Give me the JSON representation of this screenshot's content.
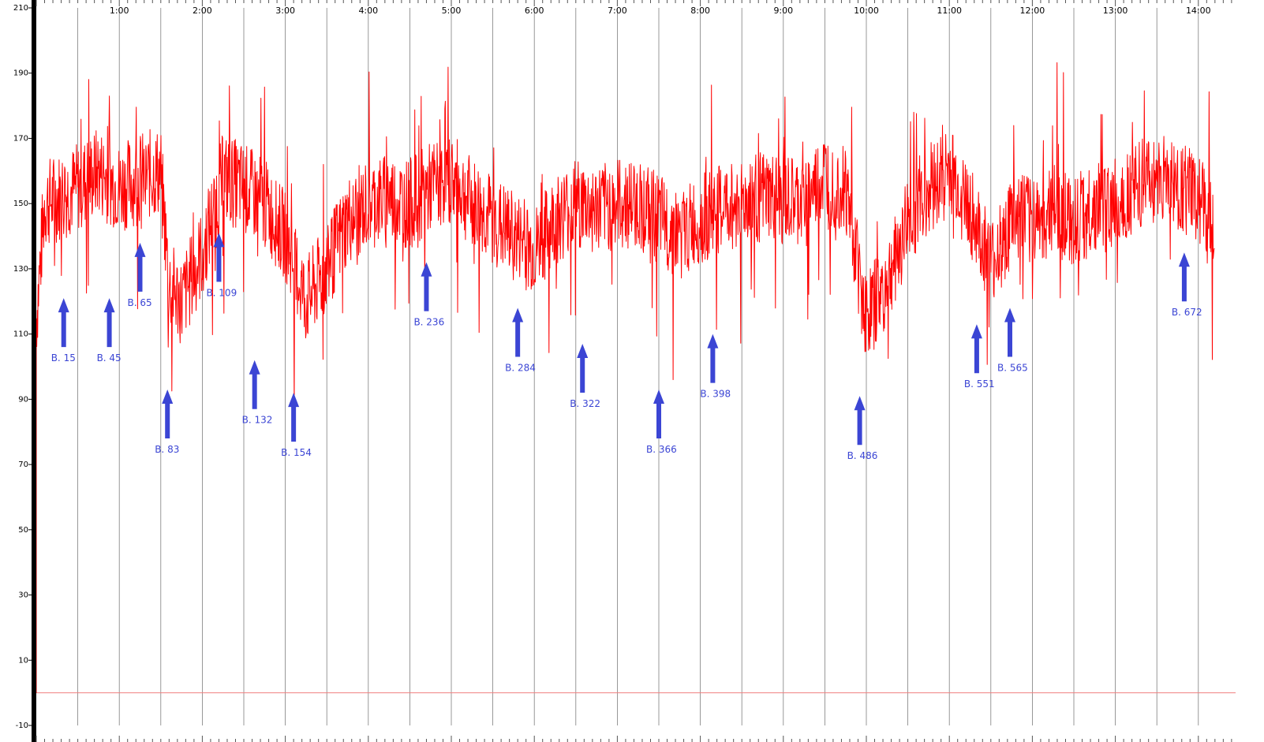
{
  "chart_data": {
    "type": "line",
    "title": "",
    "xlabel": "",
    "ylabel": "",
    "ylim": [
      -10,
      210
    ],
    "xlim_minutes": [
      0,
      14.5
    ],
    "y_ticks": [
      "210",
      "190",
      "170",
      "150",
      "130",
      "110",
      "90",
      "70",
      "50",
      "30",
      "10",
      "-10"
    ],
    "x_ticks": [
      "1:00",
      "2:00",
      "3:00",
      "4:00",
      "5:00",
      "6:00",
      "7:00",
      "8:00",
      "9:00",
      "10:00",
      "11:00",
      "12:00",
      "13:00",
      "14:00"
    ],
    "grid": "vertical lines every 30 seconds",
    "baseline": 0,
    "series": [
      {
        "color": "#ff0000",
        "x_minutes": [
          0.0,
          0.1,
          0.25,
          0.5,
          0.75,
          1.0,
          1.25,
          1.5,
          1.6,
          1.75,
          2.0,
          2.25,
          2.5,
          2.75,
          3.0,
          3.25,
          3.5,
          3.75,
          4.0,
          4.25,
          4.5,
          4.75,
          5.0,
          5.25,
          5.5,
          5.75,
          6.0,
          6.25,
          6.5,
          6.75,
          7.0,
          7.25,
          7.5,
          7.75,
          8.0,
          8.25,
          8.5,
          8.75,
          9.0,
          9.25,
          9.5,
          9.75,
          10.0,
          10.25,
          10.5,
          10.75,
          11.0,
          11.25,
          11.5,
          11.75,
          12.0,
          12.25,
          12.5,
          12.75,
          13.0,
          13.25,
          13.5,
          13.75,
          14.0,
          14.2
        ],
        "y_bpm": [
          115,
          150,
          152,
          155,
          160,
          155,
          158,
          160,
          125,
          120,
          135,
          158,
          155,
          150,
          140,
          120,
          130,
          145,
          150,
          152,
          150,
          155,
          158,
          150,
          145,
          140,
          135,
          145,
          150,
          148,
          150,
          150,
          145,
          140,
          145,
          148,
          150,
          152,
          150,
          150,
          158,
          155,
          115,
          125,
          145,
          155,
          160,
          148,
          130,
          145,
          145,
          148,
          145,
          148,
          150,
          155,
          158,
          155,
          152,
          140
        ]
      }
    ],
    "annotations": [
      {
        "label": "B. 15",
        "x_minutes": 0.33,
        "y_bpm": 121
      },
      {
        "label": "B. 45",
        "x_minutes": 0.88,
        "y_bpm": 121
      },
      {
        "label": "B. 65",
        "x_minutes": 1.25,
        "y_bpm": 138
      },
      {
        "label": "B. 83",
        "x_minutes": 1.58,
        "y_bpm": 93
      },
      {
        "label": "B. 109",
        "x_minutes": 2.2,
        "y_bpm": 141
      },
      {
        "label": "B. 132",
        "x_minutes": 2.63,
        "y_bpm": 102
      },
      {
        "label": "B. 154",
        "x_minutes": 3.1,
        "y_bpm": 92
      },
      {
        "label": "B. 236",
        "x_minutes": 4.7,
        "y_bpm": 132
      },
      {
        "label": "B. 284",
        "x_minutes": 5.8,
        "y_bpm": 118
      },
      {
        "label": "B. 322",
        "x_minutes": 6.58,
        "y_bpm": 107
      },
      {
        "label": "B. 366",
        "x_minutes": 7.5,
        "y_bpm": 93
      },
      {
        "label": "B. 398",
        "x_minutes": 8.15,
        "y_bpm": 110
      },
      {
        "label": "B. 486",
        "x_minutes": 9.92,
        "y_bpm": 91
      },
      {
        "label": "B. 551",
        "x_minutes": 11.33,
        "y_bpm": 113
      },
      {
        "label": "B. 565",
        "x_minutes": 11.73,
        "y_bpm": 118
      },
      {
        "label": "B. 672",
        "x_minutes": 13.83,
        "y_bpm": 135
      }
    ],
    "colors": {
      "series": "#ff0000",
      "arrows": "#3b45d4",
      "baseline": "#f08080",
      "grid": "#7f7f7f",
      "axis": "#000000"
    }
  }
}
